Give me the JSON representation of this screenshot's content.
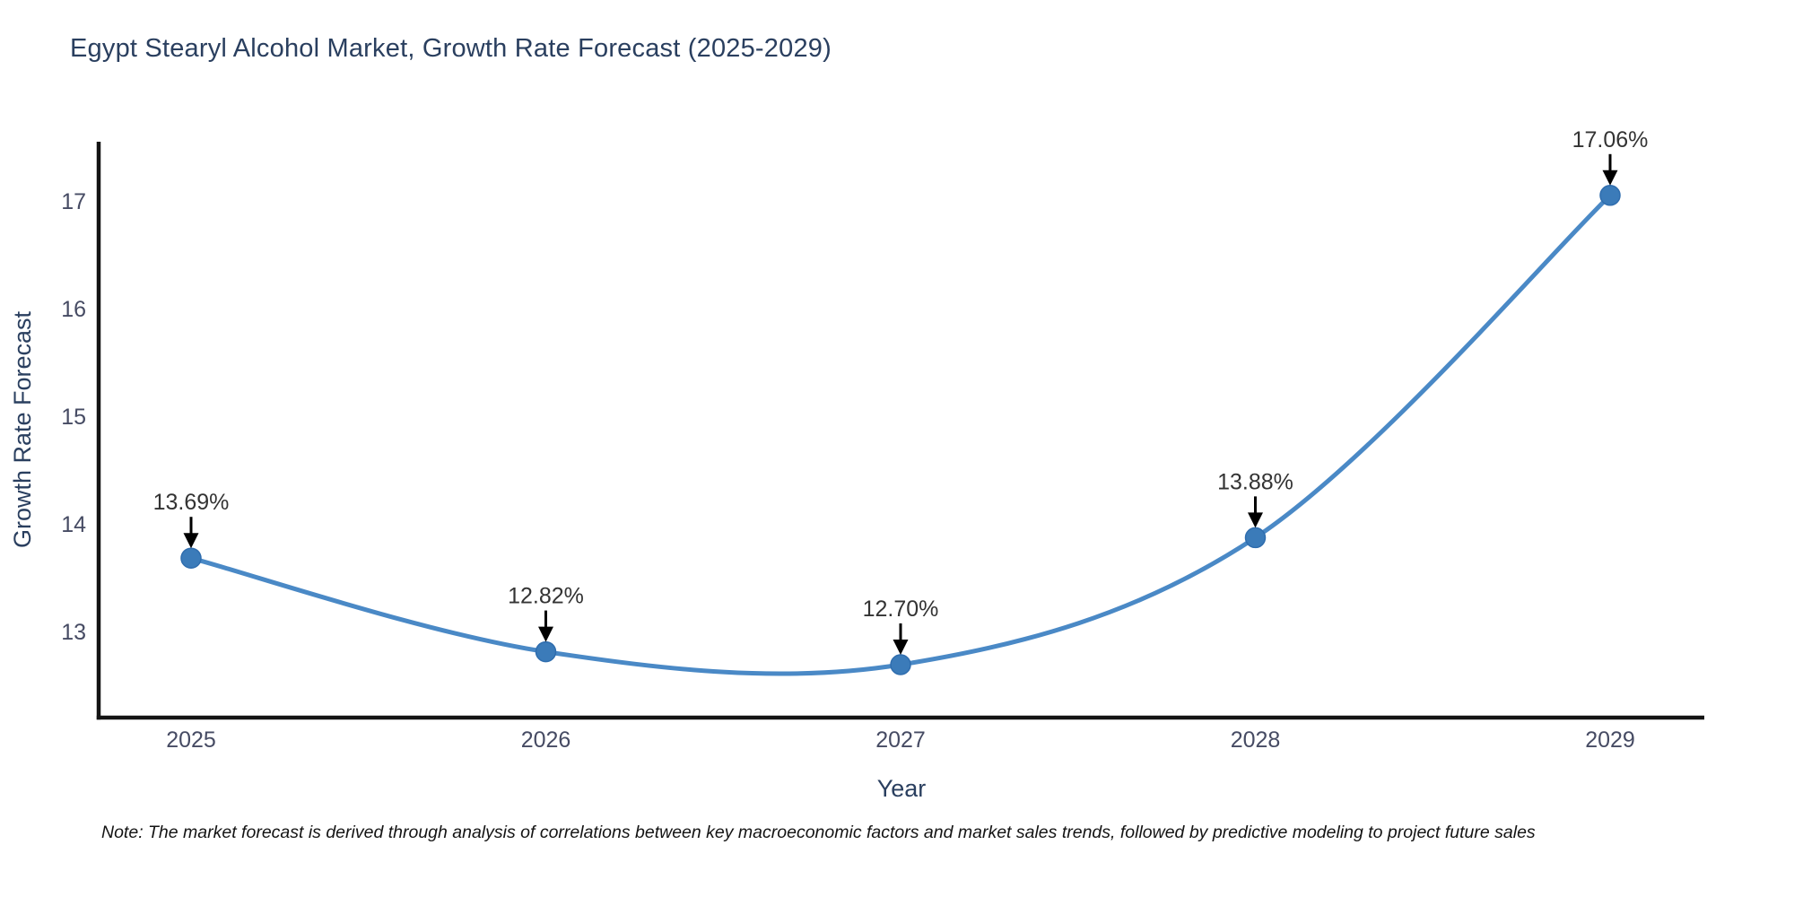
{
  "note": "Note: The market forecast is derived through analysis of correlations between key macroeconomic factors and market sales trends, followed by predictive modeling to project future sales",
  "chart_data": {
    "type": "line",
    "title": "Egypt Stearyl Alcohol Market, Growth Rate Forecast (2025-2029)",
    "xlabel": "Year",
    "ylabel": "Growth Rate Forecast",
    "categories": [
      "2025",
      "2026",
      "2027",
      "2028",
      "2029"
    ],
    "values": [
      13.69,
      12.82,
      12.7,
      13.88,
      17.06
    ],
    "point_labels": [
      "13.69%",
      "12.82%",
      "12.70%",
      "13.88%",
      "17.06%"
    ],
    "yticks": [
      13,
      14,
      15,
      16,
      17
    ],
    "ylim": [
      12.2,
      17.6
    ],
    "grid": false,
    "line_shape": "spline",
    "legend": "none",
    "colors": {
      "line": "#4a89c6",
      "marker": "#3b7bb9",
      "marker_edge": "#2f6dae",
      "axis_line": "#141414",
      "title_text": "#2a3f5f",
      "axis_title_text": "#2a3f5f",
      "tick_text": "#464b63",
      "annotation_text": "#333333",
      "annotation_arrow": "#000000"
    }
  }
}
